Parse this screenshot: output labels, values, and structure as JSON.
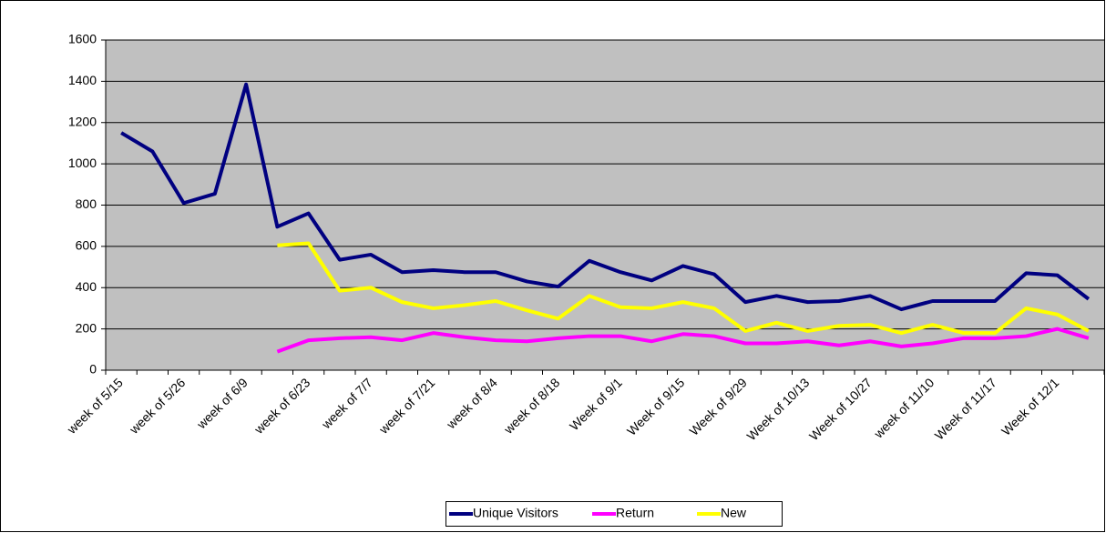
{
  "chart_data": {
    "type": "line",
    "categories": [
      "week of 5/15",
      null,
      "week of 5/26",
      null,
      "week of 6/9",
      null,
      "week of 6/23",
      null,
      "week of 7/7",
      null,
      "week of 7/21",
      null,
      "week of 8/4",
      null,
      "week of 8/18",
      null,
      "Week of 9/1",
      null,
      "Week of 9/15",
      null,
      "Week of 9/29",
      null,
      "Week of 10/13",
      null,
      "Week of 10/27",
      null,
      "week of 11/10",
      null,
      "Week of 11/17",
      null,
      "Week of 12/1",
      null
    ],
    "series": [
      {
        "name": "Unique Visitors",
        "color": "#000080",
        "values": [
          1150,
          1060,
          810,
          855,
          1385,
          695,
          760,
          535,
          560,
          475,
          485,
          475,
          475,
          430,
          405,
          530,
          475,
          435,
          505,
          465,
          330,
          360,
          330,
          335,
          360,
          295,
          335,
          335,
          335,
          470,
          460,
          345
        ]
      },
      {
        "name": "Return",
        "color": "#ff00ff",
        "values": [
          null,
          null,
          null,
          null,
          null,
          90,
          145,
          155,
          160,
          145,
          180,
          160,
          145,
          140,
          155,
          165,
          165,
          140,
          175,
          165,
          130,
          130,
          140,
          120,
          140,
          115,
          130,
          155,
          155,
          165,
          200,
          155
        ]
      },
      {
        "name": "New",
        "color": "#ffff00",
        "values": [
          null,
          null,
          null,
          null,
          null,
          605,
          615,
          385,
          400,
          330,
          300,
          315,
          335,
          290,
          250,
          360,
          305,
          300,
          330,
          300,
          190,
          230,
          190,
          215,
          220,
          180,
          220,
          180,
          180,
          300,
          270,
          190
        ]
      }
    ],
    "ylim": [
      0,
      1600
    ],
    "yticks": [
      0,
      200,
      400,
      600,
      800,
      1000,
      1200,
      1400,
      1600
    ],
    "grid": true,
    "legend": "bottom"
  }
}
